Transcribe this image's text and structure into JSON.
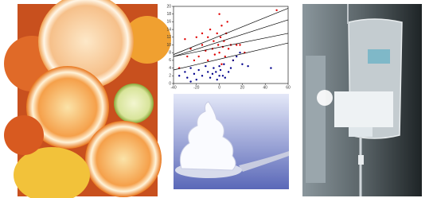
{
  "chart_data": {
    "type": "scatter",
    "xlim": [
      -40,
      60
    ],
    "ylim": [
      0,
      20
    ],
    "xticks": [
      -40,
      -20,
      0,
      20,
      40,
      60
    ],
    "yticks": [
      0,
      2,
      4,
      6,
      8,
      10,
      12,
      14,
      16,
      18,
      20
    ],
    "series": [
      {
        "mode": "markers",
        "color": "#e00000",
        "x": [
          -30,
          -25,
          -22,
          -20,
          -18,
          -15,
          -12,
          -10,
          -10,
          -8,
          -6,
          -5,
          -4,
          -2,
          -1,
          0,
          0,
          1,
          2,
          3,
          4,
          5,
          6,
          8,
          10,
          12,
          15,
          18,
          22,
          50,
          -35,
          -28,
          2,
          -15,
          7
        ],
        "values": [
          11.5,
          9,
          6,
          12,
          7,
          10,
          8.5,
          12,
          6,
          14,
          9,
          11,
          7.5,
          13,
          10,
          18,
          8,
          12,
          15,
          9.5,
          11,
          7,
          13,
          9,
          10,
          6,
          10,
          10,
          8,
          19,
          4,
          7,
          5,
          13,
          16
        ]
      },
      {
        "mode": "markers",
        "color": "#00008b",
        "x": [
          -35,
          -30,
          -28,
          -25,
          -22,
          -20,
          -18,
          -15,
          -12,
          -10,
          -8,
          -6,
          -5,
          -3,
          -2,
          0,
          0,
          1,
          3,
          4,
          5,
          8,
          10,
          12,
          15,
          18,
          20,
          25,
          45,
          -25
        ],
        "values": [
          2,
          3,
          1.5,
          4,
          2.5,
          1,
          3.5,
          2,
          4.5,
          3,
          1.5,
          2.5,
          4,
          3,
          1,
          2,
          4.5,
          3.5,
          2,
          5,
          1.5,
          3,
          4,
          6,
          7,
          8,
          5,
          4.5,
          4,
          0.5
        ]
      },
      {
        "mode": "line",
        "color": "#000000",
        "x": [
          -40,
          60
        ],
        "values": [
          7.5,
          19.5
        ]
      },
      {
        "mode": "line",
        "color": "#000000",
        "x": [
          -40,
          60
        ],
        "values": [
          7,
          16.5
        ]
      },
      {
        "mode": "line",
        "color": "#000000",
        "x": [
          -40,
          60
        ],
        "values": [
          7,
          13
        ]
      },
      {
        "mode": "line",
        "color": "#000000",
        "x": [
          -40,
          60
        ],
        "values": [
          3.5,
          10.5
        ]
      }
    ]
  }
}
